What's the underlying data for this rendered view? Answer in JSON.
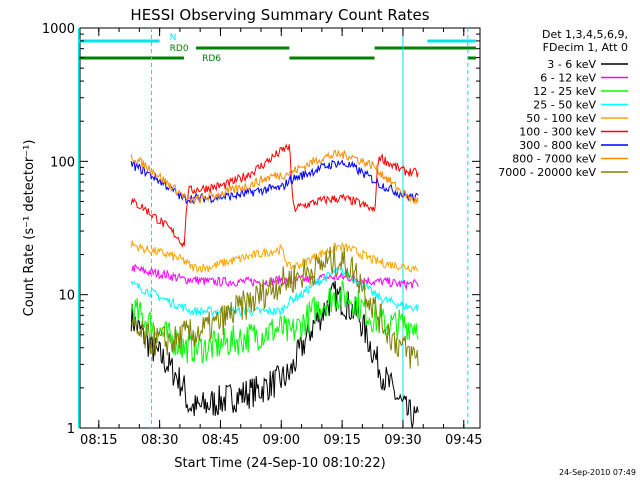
{
  "chart_data": {
    "type": "line",
    "title": "HESSI Observing Summary Count Rates",
    "xlabel": "Start Time (24-Sep-10 08:10:22)",
    "ylabel": "Count Rate (s⁻¹ detector⁻¹)",
    "y_scale": "log",
    "ylim": [
      1,
      1000
    ],
    "xlim": [
      "08:10:22",
      "09:49"
    ],
    "x_ticks": [
      "08:15",
      "08:30",
      "08:45",
      "09:00",
      "09:15",
      "09:30",
      "09:45"
    ],
    "y_ticks": [
      "1",
      "10",
      "100",
      "1000"
    ],
    "grid": false,
    "timestamp": "24-Sep-2010 07:49",
    "legend": {
      "placement": "top-right, outside plot",
      "header": [
        "Det 1,3,4,5,6,9,",
        "FDecim 1, Att 0"
      ]
    },
    "flags": [
      {
        "name": "N",
        "color": "#00e5e5",
        "label_at": "08:31",
        "segments": [
          [
            "08:10",
            "08:30"
          ],
          [
            "09:36",
            "09:48"
          ]
        ]
      },
      {
        "name": "RD0",
        "color": "#008000",
        "label_at": "08:31",
        "segments": [
          [
            "08:39",
            "09:02"
          ],
          [
            "09:23",
            "09:48"
          ]
        ]
      },
      {
        "name": "RD6",
        "color": "#008000",
        "label_at": "08:39",
        "segments": [
          [
            "08:10",
            "08:36"
          ],
          [
            "09:02",
            "09:23"
          ],
          [
            "09:46",
            "09:48"
          ]
        ]
      }
    ],
    "markers": {
      "solid": [
        "08:10",
        "09:30"
      ],
      "dashed": [
        "08:28",
        "09:46"
      ],
      "color": "#00e5e5"
    },
    "series": [
      {
        "name": "3 - 6 keV",
        "color": "#000000",
        "points": [
          [
            "08:23",
            7
          ],
          [
            "08:24",
            6
          ],
          [
            "08:26",
            5
          ],
          [
            "08:28",
            4
          ],
          [
            "08:30",
            3.5
          ],
          [
            "08:32",
            3
          ],
          [
            "08:34",
            2.5
          ],
          [
            "08:36",
            2
          ],
          [
            "08:37",
            1.5
          ],
          [
            "08:39",
            1.4
          ],
          [
            "08:42",
            1.5
          ],
          [
            "08:45",
            1.6
          ],
          [
            "08:48",
            1.7
          ],
          [
            "08:51",
            1.8
          ],
          [
            "08:54",
            1.9
          ],
          [
            "08:57",
            2.1
          ],
          [
            "09:00",
            2.3
          ],
          [
            "09:02",
            2.5
          ],
          [
            "09:05",
            4
          ],
          [
            "09:08",
            6
          ],
          [
            "09:11",
            8
          ],
          [
            "09:13",
            10
          ],
          [
            "09:15",
            9
          ],
          [
            "09:17",
            8
          ],
          [
            "09:19",
            7
          ],
          [
            "09:21",
            5
          ],
          [
            "09:23",
            3.5
          ],
          [
            "09:25",
            2.5
          ],
          [
            "09:28",
            1.8
          ],
          [
            "09:31",
            1.3
          ],
          [
            "09:34",
            1.1
          ]
        ]
      },
      {
        "name": "6 - 12 keV",
        "color": "#ff00ff",
        "points": [
          [
            "08:23",
            16
          ],
          [
            "08:26",
            15
          ],
          [
            "08:29",
            14.5
          ],
          [
            "08:32",
            14
          ],
          [
            "08:36",
            13
          ],
          [
            "08:38",
            13
          ],
          [
            "08:42",
            12.5
          ],
          [
            "08:45",
            12.5
          ],
          [
            "08:48",
            12.5
          ],
          [
            "08:51",
            12.5
          ],
          [
            "08:54",
            12.5
          ],
          [
            "08:57",
            12.5
          ],
          [
            "09:00",
            13
          ],
          [
            "09:02",
            12.5
          ],
          [
            "09:05",
            13
          ],
          [
            "09:08",
            13
          ],
          [
            "09:11",
            13.5
          ],
          [
            "09:14",
            13.5
          ],
          [
            "09:17",
            13.5
          ],
          [
            "09:20",
            13
          ],
          [
            "09:23",
            12.5
          ],
          [
            "09:26",
            12.5
          ],
          [
            "09:29",
            12
          ],
          [
            "09:32",
            12
          ],
          [
            "09:34",
            12
          ]
        ]
      },
      {
        "name": "12 - 25 keV",
        "color": "#00ff00",
        "points": [
          [
            "08:23",
            8
          ],
          [
            "08:25",
            7
          ],
          [
            "08:28",
            6
          ],
          [
            "08:31",
            5
          ],
          [
            "08:34",
            4.5
          ],
          [
            "08:36",
            4
          ],
          [
            "08:38",
            4
          ],
          [
            "08:42",
            4
          ],
          [
            "08:45",
            4.2
          ],
          [
            "08:48",
            4.5
          ],
          [
            "08:51",
            4.7
          ],
          [
            "08:54",
            5
          ],
          [
            "08:57",
            5.3
          ],
          [
            "09:00",
            5.6
          ],
          [
            "09:02",
            5
          ],
          [
            "09:05",
            6
          ],
          [
            "09:08",
            7.5
          ],
          [
            "09:11",
            9
          ],
          [
            "09:14",
            10
          ],
          [
            "09:17",
            9.5
          ],
          [
            "09:20",
            8
          ],
          [
            "09:23",
            6.5
          ],
          [
            "09:26",
            6
          ],
          [
            "09:29",
            6
          ],
          [
            "09:32",
            6
          ],
          [
            "09:34",
            6
          ]
        ]
      },
      {
        "name": "25 - 50 keV",
        "color": "#00ffff",
        "points": [
          [
            "08:23",
            12
          ],
          [
            "08:26",
            11
          ],
          [
            "08:29",
            10
          ],
          [
            "08:32",
            9
          ],
          [
            "08:36",
            8
          ],
          [
            "08:38",
            7.5
          ],
          [
            "08:42",
            7.5
          ],
          [
            "08:45",
            7.5
          ],
          [
            "08:48",
            7.5
          ],
          [
            "08:51",
            7.5
          ],
          [
            "08:54",
            7.5
          ],
          [
            "08:57",
            7.5
          ],
          [
            "09:00",
            7.5
          ],
          [
            "09:02",
            9
          ],
          [
            "09:05",
            10
          ],
          [
            "09:08",
            12
          ],
          [
            "09:11",
            13.5
          ],
          [
            "09:14",
            15
          ],
          [
            "09:17",
            14
          ],
          [
            "09:20",
            12
          ],
          [
            "09:23",
            10
          ],
          [
            "09:26",
            9
          ],
          [
            "09:29",
            8.5
          ],
          [
            "09:32",
            8
          ],
          [
            "09:34",
            8
          ]
        ]
      },
      {
        "name": "50 - 100 keV",
        "color": "#ffa500",
        "points": [
          [
            "08:23",
            24
          ],
          [
            "08:26",
            22
          ],
          [
            "08:29",
            21
          ],
          [
            "08:32",
            20
          ],
          [
            "08:36",
            18
          ],
          [
            "08:38",
            16
          ],
          [
            "08:42",
            16
          ],
          [
            "08:45",
            17
          ],
          [
            "08:48",
            18
          ],
          [
            "08:51",
            19
          ],
          [
            "08:54",
            20
          ],
          [
            "08:57",
            21
          ],
          [
            "09:00",
            22
          ],
          [
            "09:02",
            16
          ],
          [
            "09:05",
            17
          ],
          [
            "09:08",
            19
          ],
          [
            "09:11",
            21
          ],
          [
            "09:14",
            23
          ],
          [
            "09:17",
            22
          ],
          [
            "09:20",
            20
          ],
          [
            "09:23",
            18
          ],
          [
            "09:26",
            17
          ],
          [
            "09:29",
            16.5
          ],
          [
            "09:32",
            16
          ],
          [
            "09:34",
            16
          ]
        ]
      },
      {
        "name": "100 - 300 keV",
        "color": "#ff0000",
        "points": [
          [
            "08:23",
            50
          ],
          [
            "08:26",
            45
          ],
          [
            "08:29",
            38
          ],
          [
            "08:32",
            32
          ],
          [
            "08:35",
            26
          ],
          [
            "08:36",
            23
          ],
          [
            "08:37",
            60
          ],
          [
            "08:40",
            62
          ],
          [
            "08:43",
            64
          ],
          [
            "08:46",
            66
          ],
          [
            "08:49",
            72
          ],
          [
            "08:52",
            80
          ],
          [
            "08:55",
            92
          ],
          [
            "08:58",
            108
          ],
          [
            "09:01",
            125
          ],
          [
            "09:02",
            130
          ],
          [
            "09:03",
            44
          ],
          [
            "09:06",
            47
          ],
          [
            "09:09",
            50
          ],
          [
            "09:12",
            52
          ],
          [
            "09:15",
            53
          ],
          [
            "09:18",
            50
          ],
          [
            "09:21",
            46
          ],
          [
            "09:23",
            42
          ],
          [
            "09:24",
            110
          ],
          [
            "09:27",
            95
          ],
          [
            "09:30",
            85
          ],
          [
            "09:33",
            82
          ],
          [
            "09:34",
            80
          ]
        ]
      },
      {
        "name": "300 - 800 keV",
        "color": "#0000ff",
        "points": [
          [
            "08:23",
            95
          ],
          [
            "08:26",
            85
          ],
          [
            "08:29",
            75
          ],
          [
            "08:32",
            65
          ],
          [
            "08:35",
            55
          ],
          [
            "08:36",
            52
          ],
          [
            "08:38",
            53
          ],
          [
            "08:42",
            53
          ],
          [
            "08:45",
            54
          ],
          [
            "08:48",
            55
          ],
          [
            "08:51",
            57
          ],
          [
            "08:54",
            60
          ],
          [
            "08:57",
            62
          ],
          [
            "09:00",
            63
          ],
          [
            "09:02",
            72
          ],
          [
            "09:05",
            78
          ],
          [
            "09:08",
            85
          ],
          [
            "09:11",
            92
          ],
          [
            "09:14",
            98
          ],
          [
            "09:17",
            93
          ],
          [
            "09:20",
            82
          ],
          [
            "09:23",
            72
          ],
          [
            "09:24",
            68
          ],
          [
            "09:27",
            62
          ],
          [
            "09:30",
            56
          ],
          [
            "09:32",
            54
          ],
          [
            "09:34",
            53
          ]
        ]
      },
      {
        "name": "800 - 7000 keV",
        "color": "#ff8c00",
        "points": [
          [
            "08:23",
            110
          ],
          [
            "08:26",
            95
          ],
          [
            "08:29",
            82
          ],
          [
            "08:32",
            68
          ],
          [
            "08:35",
            58
          ],
          [
            "08:36",
            55
          ],
          [
            "08:37",
            50
          ],
          [
            "08:40",
            52
          ],
          [
            "08:43",
            55
          ],
          [
            "08:46",
            58
          ],
          [
            "08:49",
            62
          ],
          [
            "08:52",
            66
          ],
          [
            "08:55",
            72
          ],
          [
            "08:58",
            78
          ],
          [
            "09:01",
            80
          ],
          [
            "09:02",
            82
          ],
          [
            "09:05",
            90
          ],
          [
            "09:08",
            100
          ],
          [
            "09:11",
            108
          ],
          [
            "09:14",
            113
          ],
          [
            "09:17",
            110
          ],
          [
            "09:20",
            100
          ],
          [
            "09:23",
            92
          ],
          [
            "09:24",
            85
          ],
          [
            "09:27",
            70
          ],
          [
            "09:30",
            58
          ],
          [
            "09:32",
            52
          ],
          [
            "09:34",
            50
          ]
        ]
      },
      {
        "name": "7000 - 20000 keV",
        "color": "#808000",
        "points": [
          [
            "08:23",
            5.5
          ],
          [
            "08:25",
            5
          ],
          [
            "08:28",
            4.5
          ],
          [
            "08:31",
            4.5
          ],
          [
            "08:34",
            4.5
          ],
          [
            "08:36",
            5
          ],
          [
            "08:38",
            5
          ],
          [
            "08:41",
            5.5
          ],
          [
            "08:44",
            6
          ],
          [
            "08:47",
            7
          ],
          [
            "08:50",
            8
          ],
          [
            "08:53",
            9
          ],
          [
            "08:56",
            10.5
          ],
          [
            "08:59",
            12
          ],
          [
            "09:02",
            13
          ],
          [
            "09:05",
            14
          ],
          [
            "09:08",
            15.5
          ],
          [
            "09:11",
            17.5
          ],
          [
            "09:14",
            18
          ],
          [
            "09:16",
            17
          ],
          [
            "09:18",
            15
          ],
          [
            "09:20",
            12
          ],
          [
            "09:22",
            9
          ],
          [
            "09:24",
            7
          ],
          [
            "09:26",
            5.5
          ],
          [
            "09:28",
            4.5
          ],
          [
            "09:30",
            4
          ],
          [
            "09:32",
            3.5
          ],
          [
            "09:34",
            3.5
          ]
        ]
      }
    ]
  }
}
